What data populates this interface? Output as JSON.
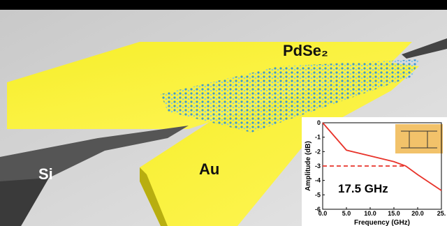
{
  "scene": {
    "labels": [
      "PdSe₂",
      "Si",
      "Au"
    ]
  },
  "chart_data": {
    "type": "line",
    "x": [
      0,
      5,
      10,
      15,
      17.5,
      20,
      25
    ],
    "series": [
      {
        "color": "#e8332a",
        "values": [
          0,
          -1.9,
          -2.3,
          -2.7,
          -3.0,
          -3.6,
          -4.7
        ]
      }
    ],
    "reference_line": {
      "y": -3,
      "x": [
        0,
        17.5
      ],
      "color": "#e8332a"
    },
    "annotation": "17.5 GHz",
    "xlabel": "Frequency (GHz)",
    "ylabel": "Amplitude (dB)",
    "xlim": [
      0,
      25
    ],
    "ylim": [
      -6,
      0
    ],
    "xticks": [
      {
        "value": 0,
        "label": "0.0"
      },
      {
        "value": 5,
        "label": "5.0"
      },
      {
        "value": 10,
        "label": "10.0"
      },
      {
        "value": 15,
        "label": "15.0"
      },
      {
        "value": 20,
        "label": "20.0"
      },
      {
        "value": 25,
        "label": "25."
      }
    ],
    "yticks": [
      0,
      -1,
      -2,
      -3,
      -4,
      -5,
      -6
    ]
  }
}
